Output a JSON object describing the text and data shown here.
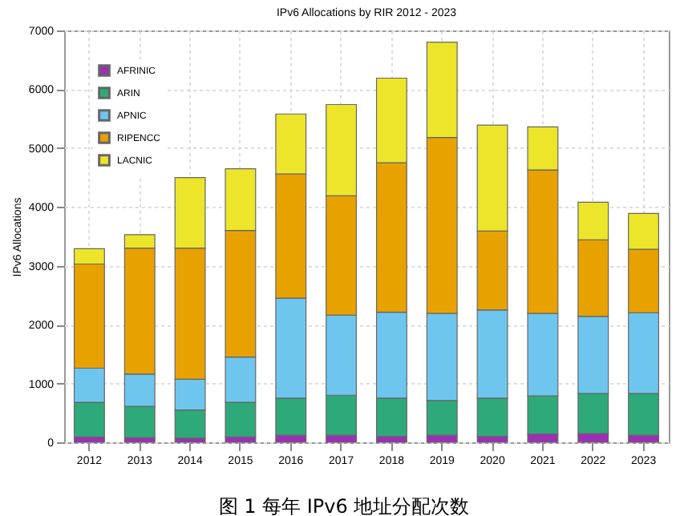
{
  "chart_data": {
    "type": "bar",
    "stacked": true,
    "title": "IPv6 Allocations by RIR 2012 - 2023",
    "ylabel": "IPv6 Allocations",
    "categories": [
      "2012",
      "2013",
      "2014",
      "2015",
      "2016",
      "2017",
      "2018",
      "2019",
      "2020",
      "2021",
      "2022",
      "2023"
    ],
    "series": [
      {
        "name": "AFRINIC",
        "color": "#9b30b5",
        "values": [
          90,
          80,
          70,
          90,
          120,
          120,
          100,
          120,
          100,
          140,
          150,
          120
        ]
      },
      {
        "name": "ARIN",
        "color": "#2eaa7a",
        "values": [
          590,
          530,
          480,
          590,
          630,
          680,
          650,
          590,
          650,
          650,
          680,
          710
        ]
      },
      {
        "name": "APNIC",
        "color": "#6ec6ef",
        "values": [
          580,
          550,
          520,
          770,
          1700,
          1360,
          1460,
          1480,
          1500,
          1400,
          1310,
          1370
        ]
      },
      {
        "name": "RIPENCC",
        "color": "#e8a200",
        "values": [
          1770,
          2140,
          2230,
          2150,
          2110,
          2030,
          2540,
          2990,
          1340,
          2440,
          1300,
          1080
        ]
      },
      {
        "name": "LACNIC",
        "color": "#ece52a",
        "values": [
          260,
          230,
          1200,
          1050,
          1020,
          1550,
          1440,
          1620,
          1800,
          730,
          640,
          610
        ]
      }
    ],
    "ylim": [
      0,
      7000
    ],
    "yticks": [
      0,
      1000,
      2000,
      3000,
      4000,
      5000,
      6000,
      7000
    ],
    "grid": true,
    "legend": "top left",
    "annotations": [
      "图 1 每年 IPv6 地址分配次数"
    ]
  }
}
